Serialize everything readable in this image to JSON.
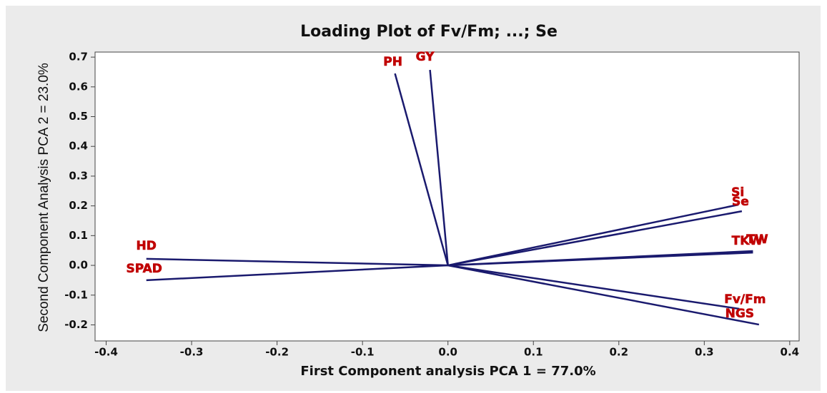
{
  "chart_data": {
    "type": "biplot",
    "title": "Loading Plot of Fv/Fm; ...; Se",
    "xlabel": "First  Component analysis PCA 1 = 77.0%",
    "ylabel": "Second Component Analysis PCA 2 = 23.0%",
    "xlim": [
      -0.413,
      0.411
    ],
    "ylim": [
      -0.254,
      0.717
    ],
    "xticks": [
      -0.4,
      -0.3,
      -0.2,
      -0.1,
      {
        "value": 0,
        "label": "0.0"
      },
      0.1,
      0.2,
      0.3,
      0.4
    ],
    "yticks": [
      -0.2,
      -0.1,
      {
        "value": 0,
        "label": "0.0"
      },
      0.1,
      0.2,
      0.3,
      0.4,
      0.5,
      0.6,
      0.7
    ],
    "line_color": "#1a1a6e",
    "label_color": "#c00000",
    "variables": [
      {
        "name": "PH",
        "x": -0.062,
        "y": 0.645
      },
      {
        "name": "GY",
        "x": -0.021,
        "y": 0.657
      },
      {
        "name": "Si",
        "x": 0.34,
        "y": 0.204
      },
      {
        "name": "Se",
        "x": 0.344,
        "y": 0.182
      },
      {
        "name": "TKW",
        "x": 0.357,
        "y": 0.043
      },
      {
        "name": "TW",
        "x": 0.357,
        "y": 0.048
      },
      {
        "name": "Fv/Fm",
        "x": 0.341,
        "y": -0.146
      },
      {
        "name": "NGS",
        "x": 0.364,
        "y": -0.199
      },
      {
        "name": "HD",
        "x": -0.353,
        "y": 0.022
      },
      {
        "name": "SPAD",
        "x": -0.353,
        "y": -0.05
      }
    ]
  }
}
